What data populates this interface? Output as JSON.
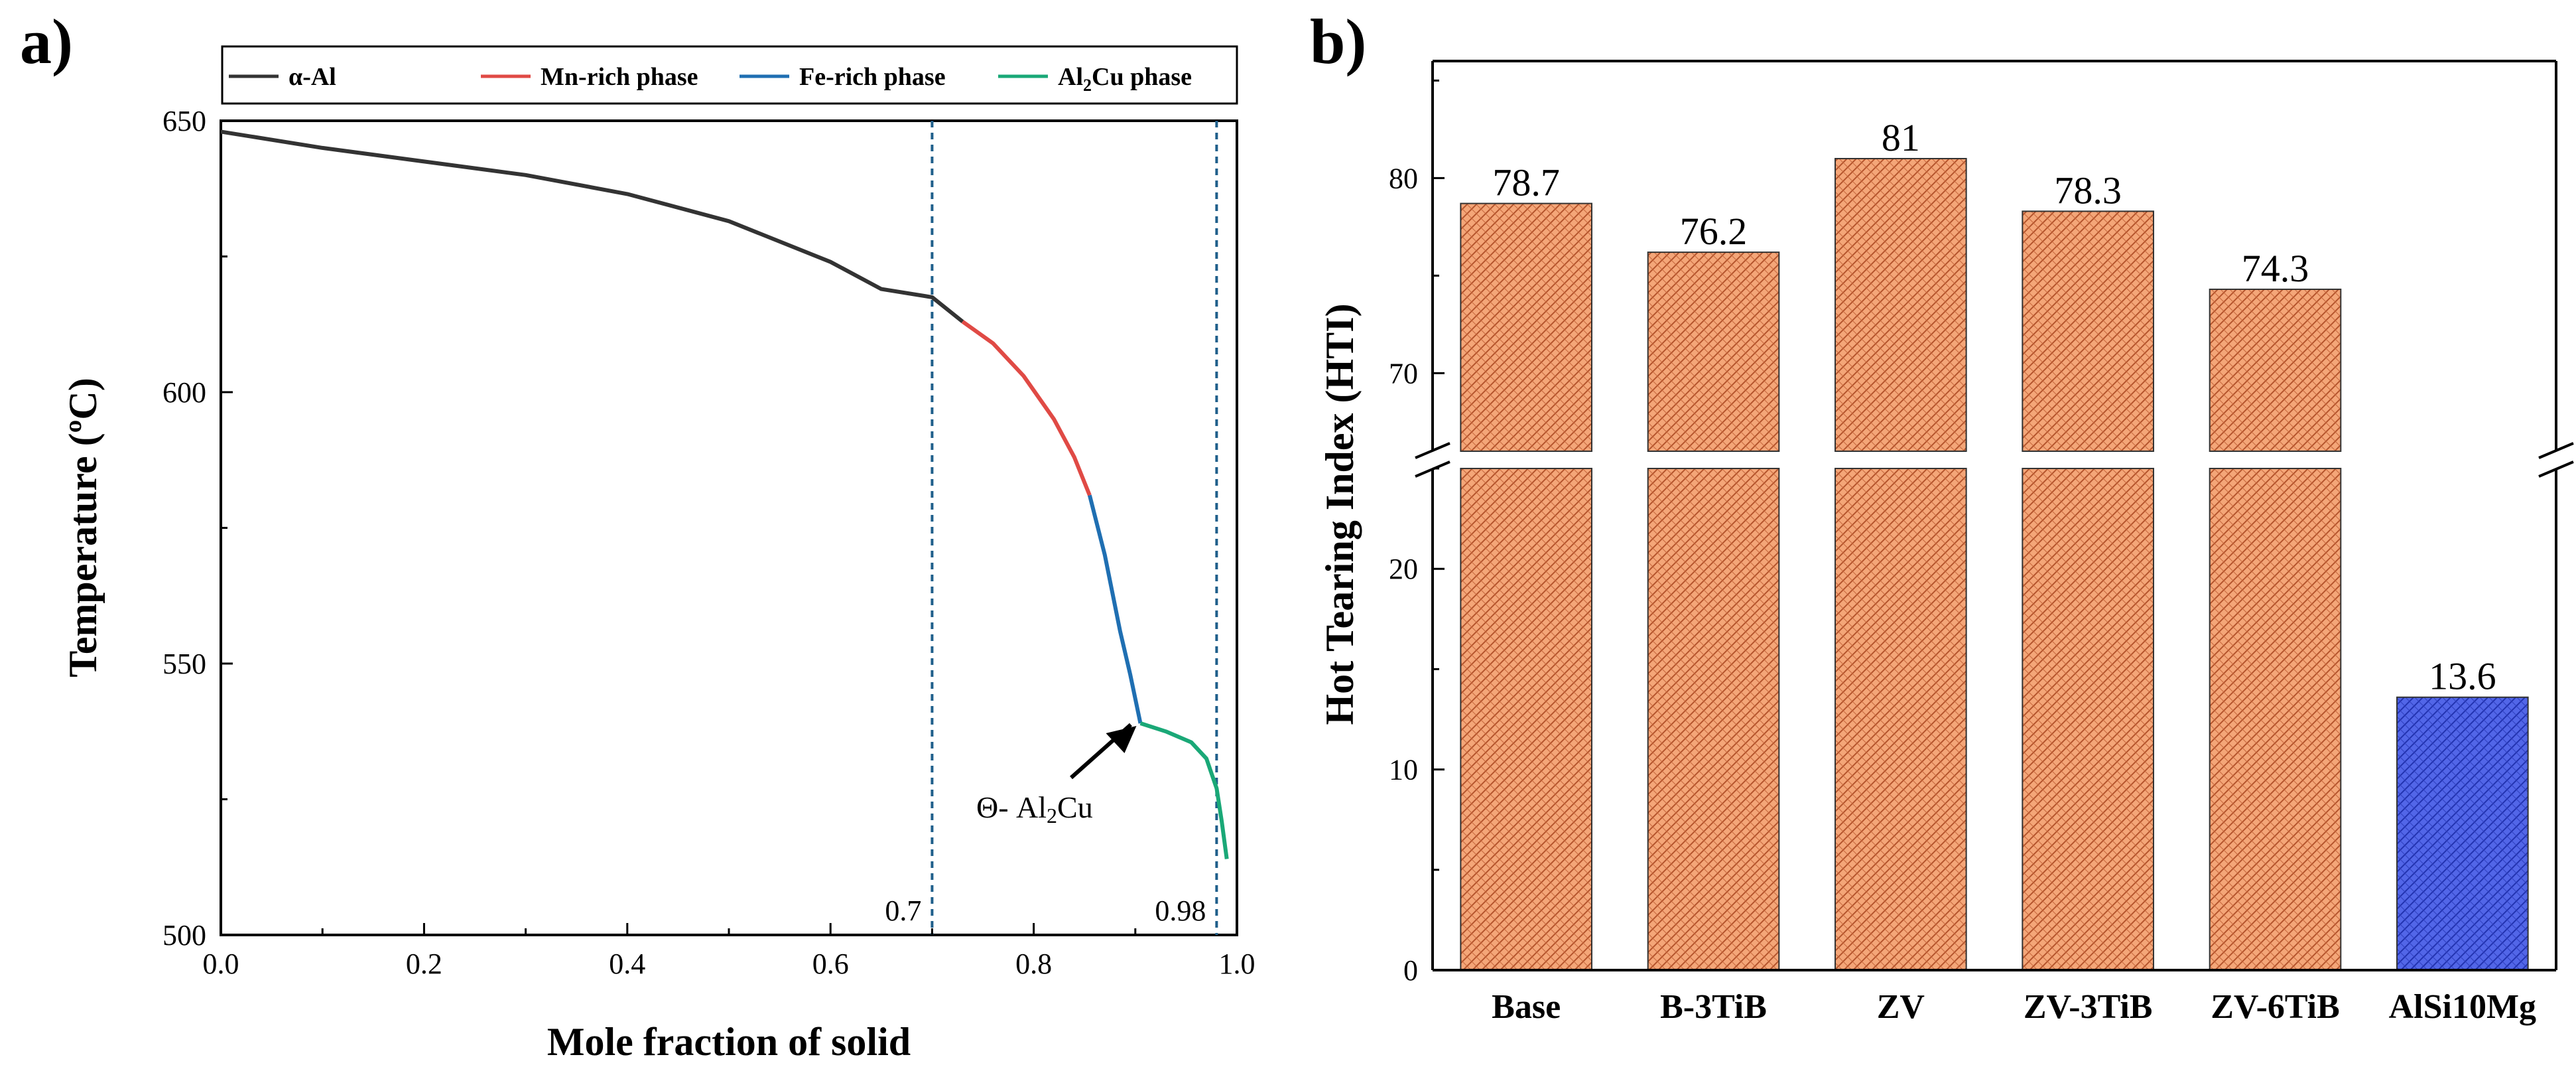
{
  "chart_data": [
    {
      "panel": "a)",
      "type": "line",
      "xlabel": "Mole fraction of solid",
      "ylabel": "Temperature (ºC)",
      "xlim": [
        0.0,
        1.0
      ],
      "ylim": [
        500,
        650
      ],
      "xticks": [
        "0.0",
        "0.2",
        "0.4",
        "0.6",
        "0.8",
        "1.0"
      ],
      "yticks": [
        "500",
        "550",
        "600",
        "650"
      ],
      "legend": {
        "placement": "top",
        "entries": [
          {
            "label": "α-Al",
            "color": "#333333"
          },
          {
            "label": "Mn-rich phase",
            "color": "#e04a45"
          },
          {
            "label": "Fe-rich phase",
            "color": "#1f6fb2"
          },
          {
            "label": "Al",
            "sub": "2",
            "suffix": "Cu phase",
            "color": "#1aa877"
          }
        ]
      },
      "series": [
        {
          "name": "α-Al",
          "color": "#333333",
          "x": [
            0.0,
            0.1,
            0.2,
            0.3,
            0.4,
            0.5,
            0.6,
            0.65,
            0.7,
            0.73
          ],
          "y": [
            648,
            645,
            642.5,
            640,
            636.5,
            631.5,
            624,
            619,
            617.5,
            613
          ]
        },
        {
          "name": "Mn-rich phase",
          "color": "#e04a45",
          "x": [
            0.73,
            0.76,
            0.79,
            0.82,
            0.84,
            0.855
          ],
          "y": [
            613,
            609,
            603,
            595,
            588,
            581
          ]
        },
        {
          "name": "Fe-rich phase",
          "color": "#1f6fb2",
          "x": [
            0.855,
            0.87,
            0.885,
            0.895,
            0.905
          ],
          "y": [
            581,
            570,
            556,
            548,
            539
          ]
        },
        {
          "name": "Al2Cu phase",
          "color": "#1aa877",
          "x": [
            0.905,
            0.93,
            0.955,
            0.97,
            0.98,
            0.985,
            0.99
          ],
          "y": [
            539,
            537.5,
            535.5,
            532.5,
            527,
            521,
            514
          ]
        }
      ],
      "vlines": [
        {
          "x": 0.7,
          "label": "0.7",
          "color": "#1f5f8b"
        },
        {
          "x": 0.98,
          "label": "0.98",
          "color": "#1f5f8b"
        }
      ],
      "annotation": {
        "prefix": "Θ- Al",
        "sub": "2",
        "suffix": "Cu",
        "x": 0.905,
        "y": 539
      }
    },
    {
      "panel": "b)",
      "type": "bar",
      "ylabel": "Hot Tearing Index (HTI)",
      "categories": [
        "Base",
        "B-3TiB",
        "ZV",
        "ZV-3TiB",
        "ZV-6TiB",
        "AlSi10Mg"
      ],
      "values": [
        78.7,
        76.2,
        81,
        78.3,
        74.3,
        13.6
      ],
      "value_labels": [
        "78.7",
        "76.2",
        "81",
        "78.3",
        "74.3",
        "13.6"
      ],
      "colors": [
        "#f0a070",
        "#f0a070",
        "#f0a070",
        "#f0a070",
        "#f0a070",
        "#4a5ce0"
      ],
      "axis_break": {
        "lower_range": [
          0,
          25
        ],
        "upper_range": [
          66,
          86
        ]
      },
      "yticks_lower": [
        "0",
        "10",
        "20"
      ],
      "yticks_upper": [
        "70",
        "80"
      ]
    }
  ]
}
